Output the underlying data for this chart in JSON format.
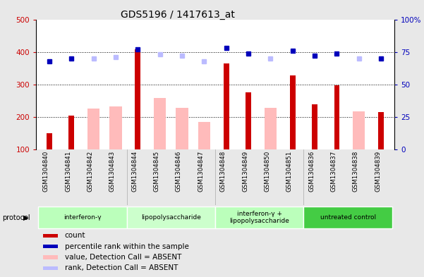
{
  "title": "GDS5196 / 1417613_at",
  "samples": [
    "GSM1304840",
    "GSM1304841",
    "GSM1304842",
    "GSM1304843",
    "GSM1304844",
    "GSM1304845",
    "GSM1304846",
    "GSM1304847",
    "GSM1304848",
    "GSM1304849",
    "GSM1304850",
    "GSM1304851",
    "GSM1304836",
    "GSM1304837",
    "GSM1304838",
    "GSM1304839"
  ],
  "count_values": [
    150,
    205,
    null,
    null,
    408,
    null,
    null,
    null,
    365,
    275,
    null,
    328,
    238,
    297,
    null,
    215
  ],
  "absent_values": [
    null,
    null,
    225,
    232,
    null,
    258,
    228,
    185,
    null,
    null,
    228,
    null,
    null,
    null,
    218,
    null
  ],
  "rank_present": [
    68,
    70,
    null,
    null,
    77,
    null,
    null,
    null,
    78,
    74,
    null,
    76,
    72,
    74,
    null,
    70
  ],
  "rank_absent": [
    null,
    null,
    70,
    71,
    null,
    73,
    72,
    68,
    null,
    null,
    70,
    null,
    null,
    null,
    70,
    null
  ],
  "ylim_left": [
    100,
    500
  ],
  "ylim_right": [
    0,
    100
  ],
  "yticks_left": [
    100,
    200,
    300,
    400,
    500
  ],
  "yticks_right": [
    0,
    25,
    50,
    75,
    100
  ],
  "yticklabels_right": [
    "0",
    "25",
    "50",
    "75",
    "100%"
  ],
  "groups": [
    {
      "label": "interferon-γ",
      "start": 0,
      "end": 4,
      "color": "#bbffbb"
    },
    {
      "label": "lipopolysaccharide",
      "start": 4,
      "end": 8,
      "color": "#ccffcc"
    },
    {
      "label": "interferon-γ +\nlipopolysaccharide",
      "start": 8,
      "end": 12,
      "color": "#bbffbb"
    },
    {
      "label": "untreated control",
      "start": 12,
      "end": 16,
      "color": "#44cc44"
    }
  ],
  "color_count": "#cc0000",
  "color_absent_val": "#ffbbbb",
  "color_rank_present": "#0000bb",
  "color_rank_absent": "#bbbbff",
  "bg_color": "#e8e8e8",
  "plot_bg": "#ffffff",
  "ytick_left_color": "#cc0000",
  "ytick_right_color": "#0000bb"
}
